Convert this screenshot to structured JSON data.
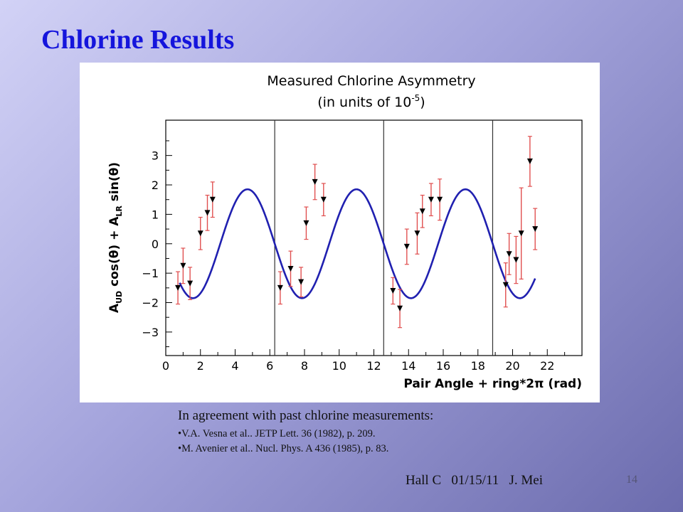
{
  "slide": {
    "title": "Chlorine Results",
    "notes": {
      "intro": "In agreement with past chlorine measurements:",
      "references": [
        "V.A. Vesna et al.. JETP Lett. 36 (1982), p. 209.",
        "M. Avenier et al.. Nucl. Phys. A 436 (1985), p. 83."
      ]
    },
    "footer": "Hall C   01/15/11   J. Mei",
    "page_number": "14"
  },
  "colors": {
    "title": "#1515dc",
    "fit_curve": "#2020b0",
    "error_bars": "#e05050",
    "markers": "#000000"
  },
  "chart_data": {
    "type": "scatter",
    "title_line1": "Measured Chlorine Asymmetry",
    "title_line2_prefix": "(in units of 10",
    "title_line2_exponent": "-5",
    "title_line2_suffix": ")",
    "xlabel": "Pair Angle + ring*2π (rad)",
    "ylabel_parts": {
      "a1": "A",
      "sub1": "UD",
      "mid": " cos(θ) + A",
      "sub2": "LR",
      "end": " sin(θ)"
    },
    "xlim": [
      0,
      24
    ],
    "ylim": [
      -3.8,
      4.2
    ],
    "x_ticks": [
      0,
      2,
      4,
      6,
      8,
      10,
      12,
      14,
      16,
      18,
      20,
      22
    ],
    "y_ticks": [
      -3,
      -2,
      -1,
      0,
      1,
      2,
      3
    ],
    "y_tick_labels": [
      "−3",
      "−2",
      "−1",
      "0",
      "1",
      "2",
      "3"
    ],
    "ring_boundaries": [
      6.283,
      12.566,
      18.85
    ],
    "fit": {
      "amplitude": 1.85,
      "phase_shift": 1.571,
      "x_range": [
        0.8,
        21.3
      ]
    },
    "series": [
      {
        "x": [
          0.7,
          1.0,
          1.4,
          2.0,
          2.4,
          2.7,
          6.6,
          7.2,
          7.8,
          8.1,
          8.6,
          9.1,
          13.1,
          13.5,
          13.9,
          14.5,
          14.8,
          15.3,
          15.8,
          19.6,
          19.8,
          20.2,
          20.5,
          21.0,
          21.3
        ],
        "y": [
          -1.5,
          -0.75,
          -1.35,
          0.35,
          1.05,
          1.5,
          -1.5,
          -0.85,
          -1.3,
          0.7,
          2.1,
          1.5,
          -1.6,
          -2.2,
          -0.1,
          0.35,
          1.1,
          1.5,
          1.5,
          -1.4,
          -0.35,
          -0.55,
          0.35,
          2.8,
          0.5
        ],
        "err": [
          0.55,
          0.6,
          0.55,
          0.55,
          0.6,
          0.6,
          0.55,
          0.6,
          0.5,
          0.55,
          0.6,
          0.55,
          0.45,
          0.65,
          0.6,
          0.7,
          0.55,
          0.55,
          0.7,
          0.75,
          0.7,
          0.8,
          1.55,
          0.85,
          0.7
        ]
      }
    ],
    "grid": false
  }
}
